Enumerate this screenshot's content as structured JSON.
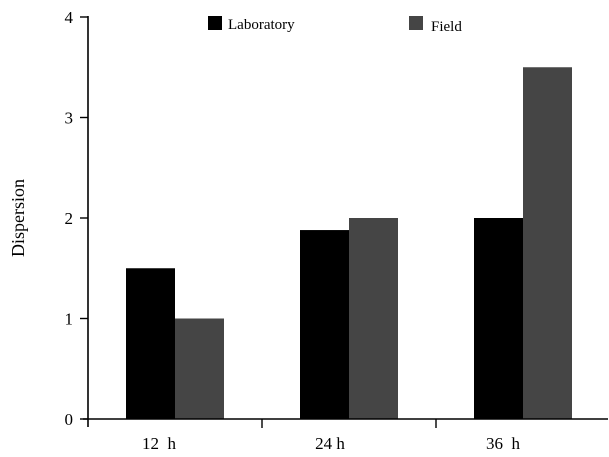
{
  "chart_data": {
    "type": "bar",
    "title": "",
    "xlabel": "",
    "ylabel": "Dispersion",
    "ylim": [
      0,
      4
    ],
    "yticks": [
      "0",
      "1",
      "2",
      "3",
      "4"
    ],
    "categories": [
      "12  h",
      "24 h",
      "36  h"
    ],
    "series": [
      {
        "name": "Laboratory",
        "color": "#000000",
        "values": [
          1.5,
          1.88,
          2.0
        ]
      },
      {
        "name": "Field",
        "color": "#454545",
        "values": [
          1.0,
          2.0,
          3.5
        ]
      }
    ],
    "grid": false,
    "legend_position": "top-center"
  }
}
